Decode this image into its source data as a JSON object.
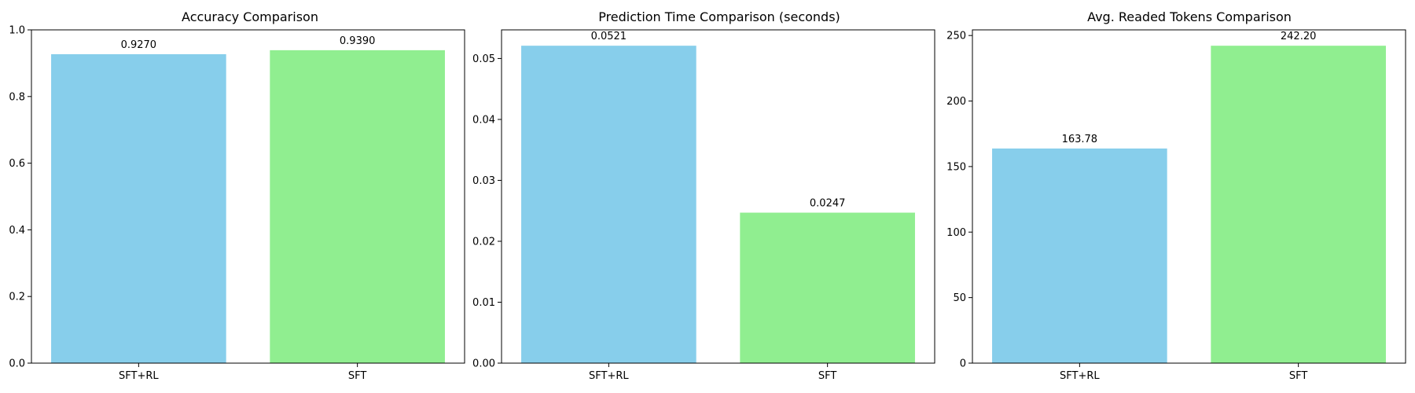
{
  "chart_data": [
    {
      "type": "bar",
      "title": "Accuracy Comparison",
      "categories": [
        "SFT+RL",
        "SFT"
      ],
      "values": [
        0.927,
        0.939
      ],
      "value_labels": [
        "0.9270",
        "0.9390"
      ],
      "colors": [
        "#87CEEB",
        "#90EE90"
      ],
      "ylim": [
        0,
        1.0
      ],
      "yticks": [
        0.0,
        0.2,
        0.4,
        0.6,
        0.8,
        1.0
      ],
      "ytick_labels": [
        "0.0",
        "0.2",
        "0.4",
        "0.6",
        "0.8",
        "1.0"
      ],
      "xlabel": "",
      "ylabel": "",
      "grid": false
    },
    {
      "type": "bar",
      "title": "Prediction Time Comparison (seconds)",
      "categories": [
        "SFT+RL",
        "SFT"
      ],
      "values": [
        0.0521,
        0.0247
      ],
      "value_labels": [
        "0.0521",
        "0.0247"
      ],
      "colors": [
        "#87CEEB",
        "#90EE90"
      ],
      "ylim": [
        0,
        0.0547
      ],
      "yticks": [
        0.0,
        0.01,
        0.02,
        0.03,
        0.04,
        0.05
      ],
      "ytick_labels": [
        "0.00",
        "0.01",
        "0.02",
        "0.03",
        "0.04",
        "0.05"
      ],
      "xlabel": "",
      "ylabel": "",
      "grid": false
    },
    {
      "type": "bar",
      "title": "Avg. Readed Tokens Comparison",
      "categories": [
        "SFT+RL",
        "SFT"
      ],
      "values": [
        163.78,
        242.2
      ],
      "value_labels": [
        "163.78",
        "242.20"
      ],
      "colors": [
        "#87CEEB",
        "#90EE90"
      ],
      "ylim": [
        0,
        254.3
      ],
      "yticks": [
        0,
        50,
        100,
        150,
        200,
        250
      ],
      "ytick_labels": [
        "0",
        "50",
        "100",
        "150",
        "200",
        "250"
      ],
      "xlabel": "",
      "ylabel": "",
      "grid": false
    }
  ]
}
